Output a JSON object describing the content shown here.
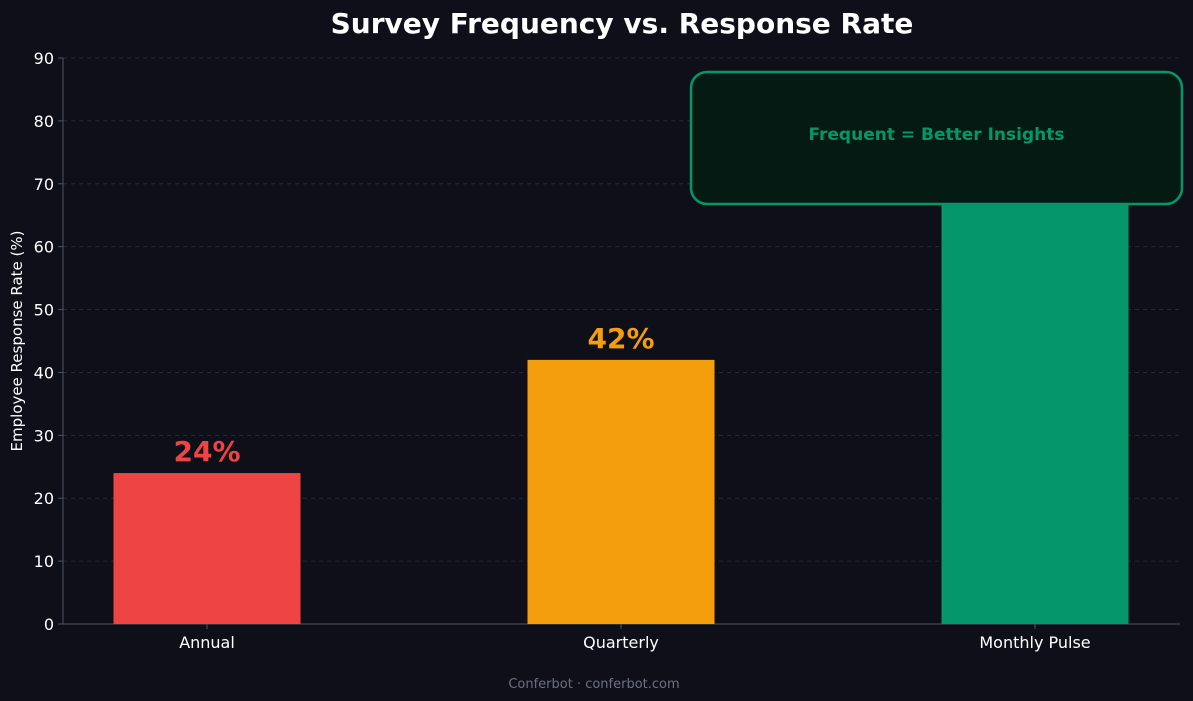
{
  "chart_data": {
    "type": "bar",
    "title": "Survey Frequency vs. Response Rate",
    "xlabel": "",
    "ylabel": "Employee Response Rate (%)",
    "categories": [
      "Annual",
      "Quarterly",
      "Monthly Pulse"
    ],
    "values": [
      24,
      42,
      67
    ],
    "value_labels": [
      "24%",
      "42%",
      ""
    ],
    "bar_colors": [
      "#ef4444",
      "#f59e0b",
      "#059669"
    ],
    "label_colors": [
      "#ef4444",
      "#f59e0b",
      "#059669"
    ],
    "ylim": [
      0,
      90
    ],
    "yticks": [
      0,
      10,
      20,
      30,
      40,
      50,
      60,
      70,
      80,
      90
    ],
    "grid": true,
    "annotation": {
      "text": "Frequent = Better Insights",
      "text_color": "#059669",
      "box_fill": "#041a12",
      "box_border": "#059669"
    },
    "background": "#0f0f19",
    "axis_color": "#4b5563",
    "text_color": "#ffffff"
  },
  "footer": {
    "credit": "Conferbot · conferbot.com"
  }
}
